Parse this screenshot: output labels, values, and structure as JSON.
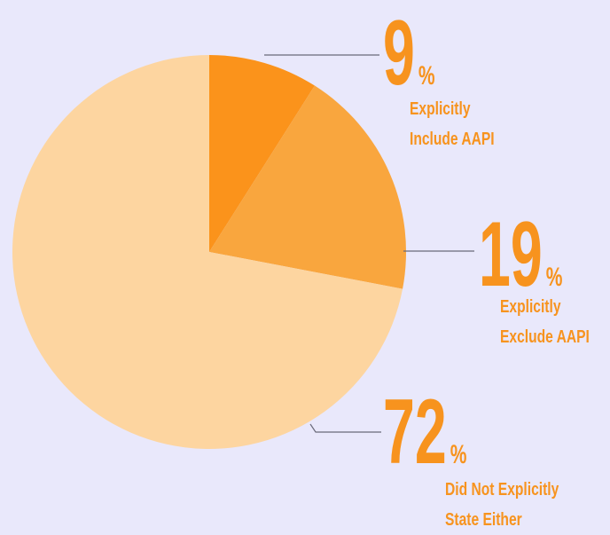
{
  "chart_data": {
    "type": "pie",
    "categories": [
      "Explicitly Include AAPI",
      "Explicitly Exclude AAPI",
      "Did Not Explicitly State Either"
    ],
    "values": [
      9,
      19,
      72
    ],
    "unit": "%",
    "colors": [
      "#fb931b",
      "#f9a63e",
      "#fdd5a0"
    ]
  }
}
